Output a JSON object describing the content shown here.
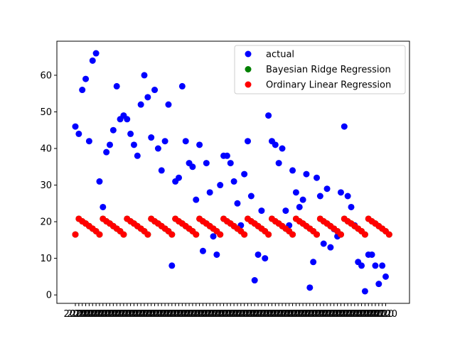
{
  "chart_data": {
    "type": "scatter",
    "xlabel": "",
    "ylabel": "",
    "ylim": [
      -2.3,
      69.3
    ],
    "yticks": [
      0,
      10,
      20,
      30,
      40,
      50,
      60
    ],
    "x_tick_text": "2020",
    "legend": "upper right",
    "grid": false,
    "series": [
      {
        "name": "actual",
        "color": "#0000ff",
        "values": [
          46,
          44,
          56,
          59,
          42,
          64,
          66,
          31,
          24,
          39,
          41,
          45,
          57,
          48,
          49,
          48,
          44,
          41,
          38,
          52,
          60,
          54,
          43,
          56,
          40,
          34,
          42,
          52,
          8,
          31,
          32,
          57,
          42,
          36,
          35,
          26,
          41,
          12,
          36,
          28,
          16,
          11,
          30,
          38,
          38,
          36,
          31,
          25,
          19,
          33,
          42,
          27,
          4,
          11,
          23,
          10,
          49,
          42,
          41,
          36,
          40,
          23,
          19,
          34,
          28,
          24,
          26,
          33,
          2,
          9,
          32,
          27,
          14,
          29,
          13,
          18,
          16,
          28,
          46,
          27,
          24,
          19,
          9,
          8,
          1,
          11,
          11,
          8,
          3,
          8,
          5
        ]
      },
      {
        "name": "Bayesian Ridge Regression",
        "color": "#008000",
        "values": [
          16.5,
          20.8,
          20.1,
          19.5,
          18.8,
          18.1,
          17.4,
          16.5,
          20.8,
          20.1,
          19.5,
          18.8,
          18.1,
          17.4,
          16.5,
          20.8,
          20.1,
          19.5,
          18.8,
          18.1,
          17.4,
          16.5,
          20.8,
          20.1,
          19.5,
          18.8,
          18.1,
          17.4,
          16.5,
          20.8,
          20.1,
          19.5,
          18.8,
          18.1,
          17.4,
          16.5,
          20.8,
          20.1,
          19.5,
          18.8,
          18.1,
          17.4,
          16.5,
          20.8,
          20.1,
          19.5,
          18.8,
          18.1,
          17.4,
          16.5,
          20.8,
          20.1,
          19.5,
          18.8,
          18.1,
          17.4,
          16.5,
          20.8,
          20.1,
          19.5,
          18.8,
          18.1,
          17.4,
          16.5,
          20.8,
          20.1,
          19.5,
          18.8,
          18.1,
          17.4,
          16.5,
          20.8,
          20.1,
          19.5,
          18.8,
          18.1,
          17.4,
          16.5,
          20.8,
          20.1,
          19.5,
          18.8,
          18.1,
          17.4,
          16.5,
          20.8,
          20.1,
          19.5,
          18.8,
          18.1,
          17.4,
          16.5
        ]
      },
      {
        "name": "Ordinary Linear Regression",
        "color": "#ff0000",
        "values": [
          16.5,
          20.8,
          20.1,
          19.5,
          18.8,
          18.1,
          17.4,
          16.5,
          20.8,
          20.1,
          19.5,
          18.8,
          18.1,
          17.4,
          16.5,
          20.8,
          20.1,
          19.5,
          18.8,
          18.1,
          17.4,
          16.5,
          20.8,
          20.1,
          19.5,
          18.8,
          18.1,
          17.4,
          16.5,
          20.8,
          20.1,
          19.5,
          18.8,
          18.1,
          17.4,
          16.5,
          20.8,
          20.1,
          19.5,
          18.8,
          18.1,
          17.4,
          16.5,
          20.8,
          20.1,
          19.5,
          18.8,
          18.1,
          17.4,
          16.5,
          20.8,
          20.1,
          19.5,
          18.8,
          18.1,
          17.4,
          16.5,
          20.8,
          20.1,
          19.5,
          18.8,
          18.1,
          17.4,
          16.5,
          20.8,
          20.1,
          19.5,
          18.8,
          18.1,
          17.4,
          16.5,
          20.8,
          20.1,
          19.5,
          18.8,
          18.1,
          17.4,
          16.5,
          20.8,
          20.1,
          19.5,
          18.8,
          18.1,
          17.4,
          16.5,
          20.8,
          20.1,
          19.5,
          18.8,
          18.1,
          17.4,
          16.5
        ]
      }
    ]
  }
}
